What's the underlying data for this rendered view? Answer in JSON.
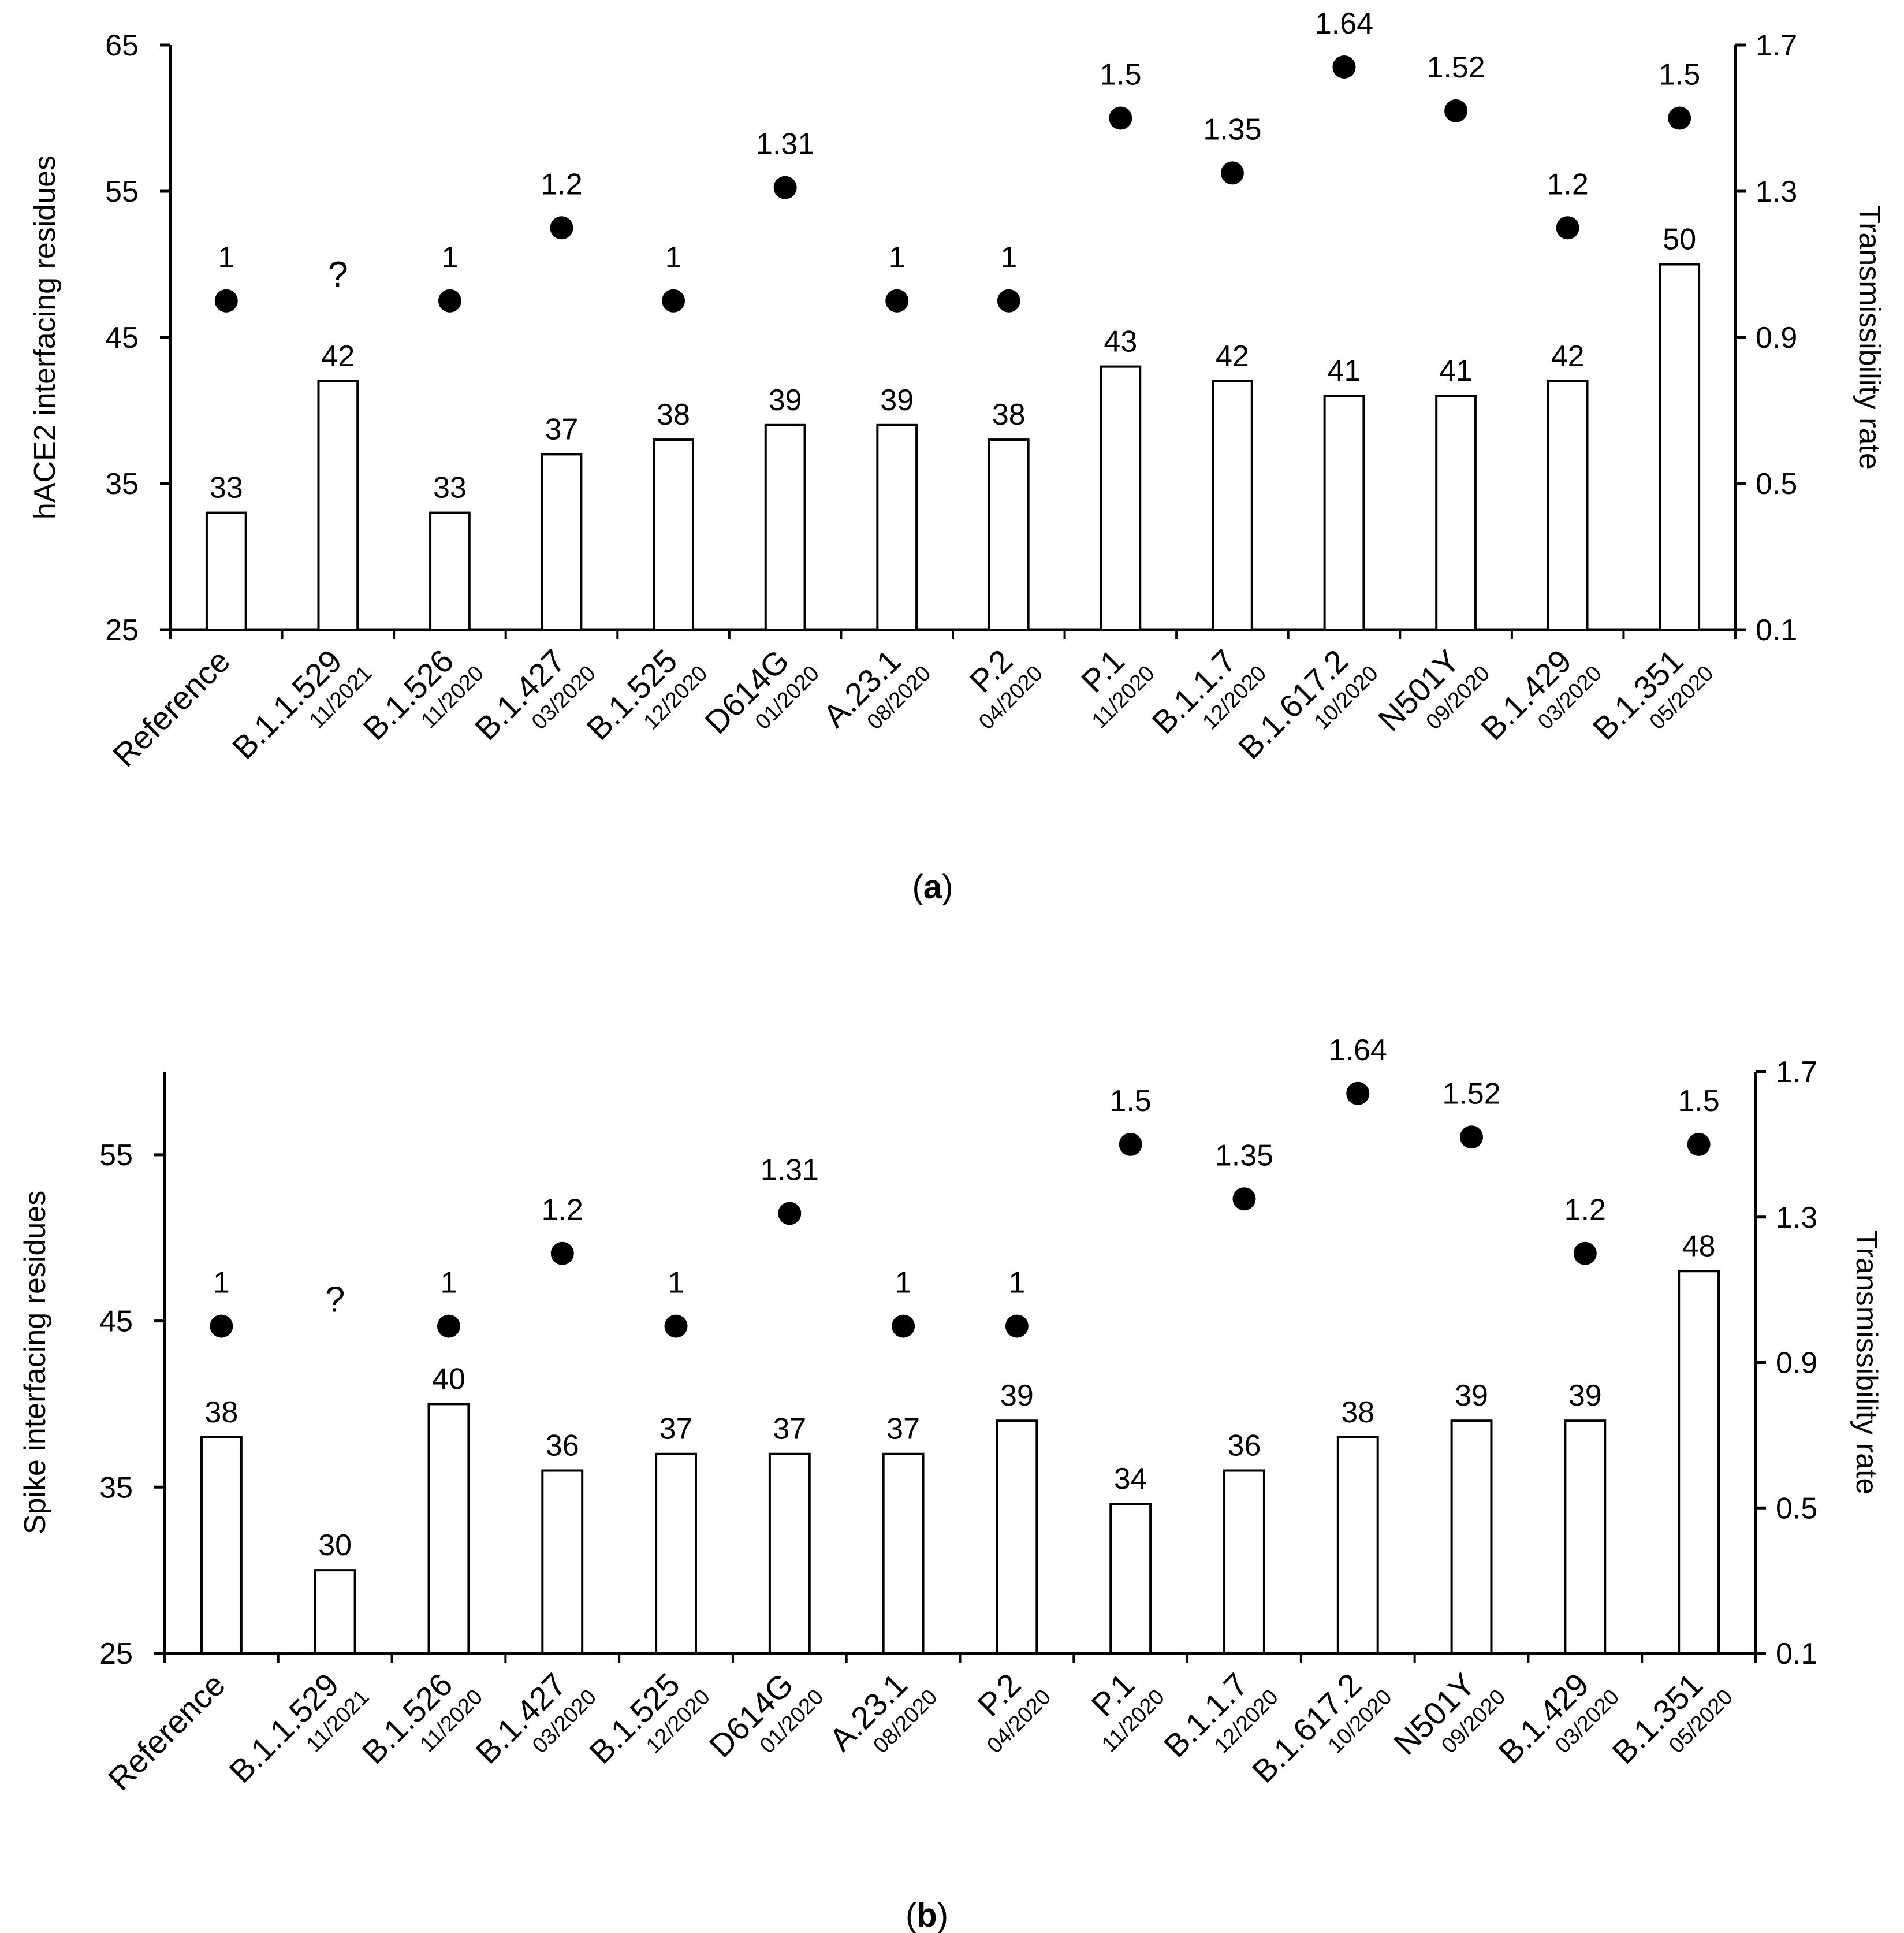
{
  "chart_data": [
    {
      "type": "bar",
      "panel_label": "a",
      "ylabel": "hACE2 interfacing residues",
      "y2label": "Transmissibility rate",
      "ylim": [
        25,
        65
      ],
      "yticks": [
        25,
        35,
        45,
        55,
        65
      ],
      "y2lim": [
        0.1,
        1.7
      ],
      "y2ticks": [
        0.1,
        0.5,
        0.9,
        1.3,
        1.7
      ],
      "categories": [
        {
          "name": "Reference",
          "date": ""
        },
        {
          "name": "B.1.1.529",
          "date": "11/2021"
        },
        {
          "name": "B.1.526",
          "date": "11/2020"
        },
        {
          "name": "B.1.427",
          "date": "03/2020"
        },
        {
          "name": "B.1.525",
          "date": "12/2020"
        },
        {
          "name": "D614G",
          "date": "01/2020"
        },
        {
          "name": "A.23.1",
          "date": "08/2020"
        },
        {
          "name": "P.2",
          "date": "04/2020"
        },
        {
          "name": "P.1",
          "date": "11/2020"
        },
        {
          "name": "B.1.1.7",
          "date": "12/2020"
        },
        {
          "name": "B.1.617.2",
          "date": "10/2020"
        },
        {
          "name": "N501Y",
          "date": "09/2020"
        },
        {
          "name": "B.1.429",
          "date": "03/2020"
        },
        {
          "name": "B.1.351",
          "date": "05/2020"
        }
      ],
      "series": [
        {
          "name": "hACE2 interfacing residues",
          "kind": "bar",
          "axis": "left",
          "values": [
            33,
            42,
            33,
            37,
            38,
            39,
            39,
            38,
            43,
            42,
            41,
            41,
            42,
            50
          ]
        },
        {
          "name": "Transmissibility rate",
          "kind": "scatter",
          "axis": "right",
          "values": [
            1,
            null,
            1,
            1.2,
            1,
            1.31,
            1,
            1,
            1.5,
            1.35,
            1.64,
            1.52,
            1.2,
            1.5
          ],
          "labels": [
            "1",
            "?",
            "1",
            "1.2",
            "1",
            "1.31",
            "1",
            "1",
            "1.5",
            "1.35",
            "1.64",
            "1.52",
            "1.2",
            "1.5"
          ]
        }
      ]
    },
    {
      "type": "bar",
      "panel_label": "b",
      "ylabel": "Spike interfacing residues",
      "y2label": "Transmissibility rate",
      "ylim": [
        25,
        60
      ],
      "yticks": [
        25,
        35,
        45,
        55
      ],
      "y2lim": [
        0.1,
        1.7
      ],
      "y2ticks": [
        0.1,
        0.5,
        0.9,
        1.3,
        1.7
      ],
      "categories": [
        {
          "name": "Reference",
          "date": ""
        },
        {
          "name": "B.1.1.529",
          "date": "11/2021"
        },
        {
          "name": "B.1.526",
          "date": "11/2020"
        },
        {
          "name": "B.1.427",
          "date": "03/2020"
        },
        {
          "name": "B.1.525",
          "date": "12/2020"
        },
        {
          "name": "D614G",
          "date": "01/2020"
        },
        {
          "name": "A.23.1",
          "date": "08/2020"
        },
        {
          "name": "P.2",
          "date": "04/2020"
        },
        {
          "name": "P.1",
          "date": "11/2020"
        },
        {
          "name": "B.1.1.7",
          "date": "12/2020"
        },
        {
          "name": "B.1.617.2",
          "date": "10/2020"
        },
        {
          "name": "N501Y",
          "date": "09/2020"
        },
        {
          "name": "B.1.429",
          "date": "03/2020"
        },
        {
          "name": "B.1.351",
          "date": "05/2020"
        }
      ],
      "series": [
        {
          "name": "Spike interfacing residues",
          "kind": "bar",
          "axis": "left",
          "values": [
            38,
            30,
            40,
            36,
            37,
            37,
            37,
            39,
            34,
            36,
            38,
            39,
            39,
            48
          ]
        },
        {
          "name": "Transmissibility rate",
          "kind": "scatter",
          "axis": "right",
          "values": [
            1,
            null,
            1,
            1.2,
            1,
            1.31,
            1,
            1,
            1.5,
            1.35,
            1.64,
            1.52,
            1.2,
            1.5
          ],
          "labels": [
            "1",
            "?",
            "1",
            "1.2",
            "1",
            "1.31",
            "1",
            "1",
            "1.5",
            "1.35",
            "1.64",
            "1.52",
            "1.2",
            "1.5"
          ]
        }
      ]
    }
  ]
}
